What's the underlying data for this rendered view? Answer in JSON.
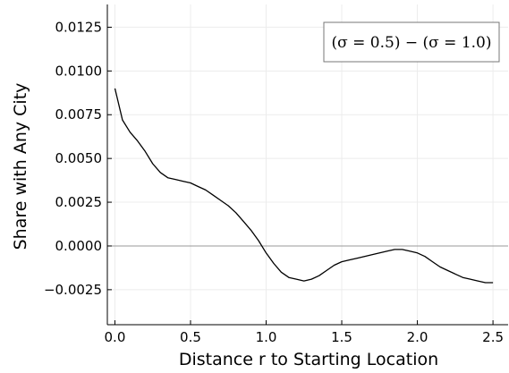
{
  "chart_data": {
    "type": "line",
    "title": "",
    "xlabel": "Distance r to Starting Location",
    "ylabel": "Share with Any City",
    "xlim": [
      -0.05,
      2.6
    ],
    "ylim": [
      -0.0045,
      0.0138
    ],
    "xticks": [
      0.0,
      0.5,
      1.0,
      1.5,
      2.0,
      2.5
    ],
    "xtick_labels": [
      "0.0",
      "0.5",
      "1.0",
      "1.5",
      "2.0",
      "2.5"
    ],
    "yticks": [
      -0.0025,
      0.0,
      0.0025,
      0.005,
      0.0075,
      0.01,
      0.0125
    ],
    "ytick_labels": [
      "−0.0025",
      "0.0000",
      "0.0025",
      "0.0050",
      "0.0075",
      "0.0100",
      "0.0125"
    ],
    "grid": true,
    "reference_line_y": 0,
    "legend": {
      "position": "top-right",
      "label": "(σ = 0.5) − (σ = 1.0)"
    },
    "colors": {
      "series": "#000000",
      "zero_line": "#999999",
      "grid": "#ececec",
      "axis": "#000000"
    },
    "series": [
      {
        "name": "(σ = 0.5) − (σ = 1.0)",
        "x": [
          0.0,
          0.05,
          0.1,
          0.15,
          0.2,
          0.25,
          0.3,
          0.35,
          0.4,
          0.45,
          0.5,
          0.55,
          0.6,
          0.65,
          0.7,
          0.75,
          0.8,
          0.85,
          0.9,
          0.95,
          1.0,
          1.05,
          1.1,
          1.15,
          1.2,
          1.25,
          1.3,
          1.35,
          1.4,
          1.45,
          1.5,
          1.55,
          1.6,
          1.65,
          1.7,
          1.75,
          1.8,
          1.85,
          1.9,
          1.95,
          2.0,
          2.05,
          2.1,
          2.15,
          2.2,
          2.25,
          2.3,
          2.35,
          2.4,
          2.45,
          2.5
        ],
        "values": [
          0.009,
          0.0072,
          0.0065,
          0.006,
          0.0054,
          0.0047,
          0.0042,
          0.0039,
          0.0038,
          0.0037,
          0.0036,
          0.0034,
          0.0032,
          0.0029,
          0.0026,
          0.0023,
          0.0019,
          0.0014,
          0.0009,
          0.0003,
          -0.0004,
          -0.001,
          -0.0015,
          -0.0018,
          -0.0019,
          -0.002,
          -0.0019,
          -0.0017,
          -0.0014,
          -0.0011,
          -0.0009,
          -0.0008,
          -0.0007,
          -0.0006,
          -0.0005,
          -0.0004,
          -0.0003,
          -0.0002,
          -0.0002,
          -0.0003,
          -0.0004,
          -0.0006,
          -0.0009,
          -0.0012,
          -0.0014,
          -0.0016,
          -0.0018,
          -0.0019,
          -0.002,
          -0.0021,
          -0.0021
        ]
      }
    ]
  }
}
